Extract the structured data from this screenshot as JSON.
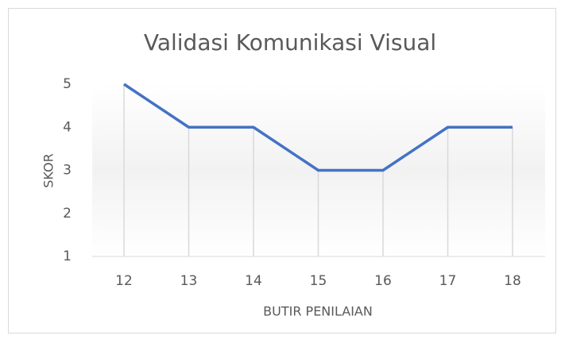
{
  "chart_data": {
    "type": "line",
    "title": "Validasi Komunikasi Visual",
    "x_label": "BUTIR PENILAIAN",
    "y_label": "SKOR",
    "categories": [
      "12",
      "13",
      "14",
      "15",
      "16",
      "17",
      "18"
    ],
    "values": [
      5,
      4,
      4,
      3,
      3,
      4,
      4
    ],
    "color": "#4472c4",
    "ylim": [
      1,
      5
    ],
    "yticks": [
      1,
      2,
      3,
      4,
      5
    ],
    "drop_lines": true
  }
}
